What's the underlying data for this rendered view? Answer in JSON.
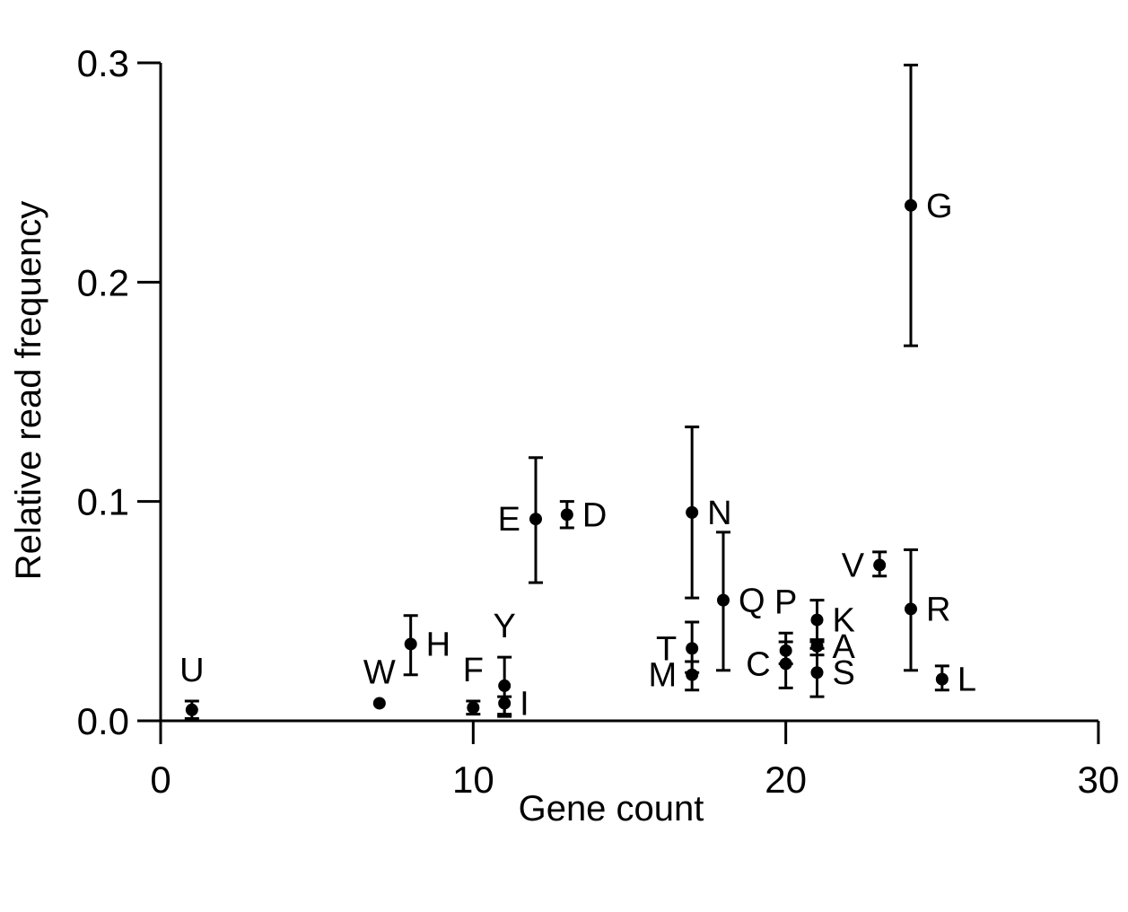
{
  "chart_data": {
    "type": "scatter",
    "title": "",
    "xlabel": "Gene count",
    "ylabel": "Relative read frequency",
    "xlim": [
      0,
      30
    ],
    "ylim": [
      0,
      0.3
    ],
    "xticks": [
      0,
      10,
      20,
      30
    ],
    "xtick_labels": [
      "0",
      "10",
      "20",
      "30"
    ],
    "yticks": [
      0,
      0.1,
      0.2,
      0.3
    ],
    "ytick_labels": [
      "0.0",
      "0.1",
      "0.2",
      "0.3"
    ],
    "grid": false,
    "legend": "none",
    "points": [
      {
        "label": "U",
        "x": 1,
        "y": 0.005,
        "ylow": 0.001,
        "yhigh": 0.009,
        "label_pos": "above"
      },
      {
        "label": "W",
        "x": 7,
        "y": 0.008,
        "ylow": 0.008,
        "yhigh": 0.008,
        "label_pos": "above"
      },
      {
        "label": "H",
        "x": 8,
        "y": 0.035,
        "ylow": 0.021,
        "yhigh": 0.048,
        "label_pos": "right"
      },
      {
        "label": "F",
        "x": 10,
        "y": 0.006,
        "ylow": 0.003,
        "yhigh": 0.009,
        "label_pos": "above"
      },
      {
        "label": "Y",
        "x": 11,
        "y": 0.016,
        "ylow": 0.003,
        "yhigh": 0.029,
        "label_pos": "above"
      },
      {
        "label": "I",
        "x": 11,
        "y": 0.008,
        "ylow": 0.002,
        "yhigh": 0.011,
        "label_pos": "right"
      },
      {
        "label": "E",
        "x": 12,
        "y": 0.092,
        "ylow": 0.063,
        "yhigh": 0.12,
        "label_pos": "left"
      },
      {
        "label": "D",
        "x": 13,
        "y": 0.094,
        "ylow": 0.088,
        "yhigh": 0.1,
        "label_pos": "right"
      },
      {
        "label": "N",
        "x": 17,
        "y": 0.095,
        "ylow": 0.056,
        "yhigh": 0.134,
        "label_pos": "right"
      },
      {
        "label": "T",
        "x": 17,
        "y": 0.033,
        "ylow": 0.022,
        "yhigh": 0.045,
        "label_pos": "left"
      },
      {
        "label": "M",
        "x": 17,
        "y": 0.021,
        "ylow": 0.014,
        "yhigh": 0.027,
        "label_pos": "left"
      },
      {
        "label": "Q",
        "x": 18,
        "y": 0.055,
        "ylow": 0.023,
        "yhigh": 0.086,
        "label_pos": "right"
      },
      {
        "label": "P",
        "x": 20,
        "y": 0.032,
        "ylow": 0.026,
        "yhigh": 0.04,
        "label_pos": "above"
      },
      {
        "label": "C",
        "x": 20,
        "y": 0.026,
        "ylow": 0.015,
        "yhigh": 0.036,
        "label_pos": "left"
      },
      {
        "label": "K",
        "x": 21,
        "y": 0.046,
        "ylow": 0.036,
        "yhigh": 0.055,
        "label_pos": "right"
      },
      {
        "label": "A",
        "x": 21,
        "y": 0.034,
        "ylow": 0.03,
        "yhigh": 0.037,
        "label_pos": "right"
      },
      {
        "label": "S",
        "x": 21,
        "y": 0.022,
        "ylow": 0.011,
        "yhigh": 0.033,
        "label_pos": "right"
      },
      {
        "label": "V",
        "x": 23,
        "y": 0.071,
        "ylow": 0.066,
        "yhigh": 0.077,
        "label_pos": "left"
      },
      {
        "label": "G",
        "x": 24,
        "y": 0.235,
        "ylow": 0.171,
        "yhigh": 0.299,
        "label_pos": "right"
      },
      {
        "label": "R",
        "x": 24,
        "y": 0.051,
        "ylow": 0.023,
        "yhigh": 0.078,
        "label_pos": "right"
      },
      {
        "label": "L",
        "x": 25,
        "y": 0.019,
        "ylow": 0.014,
        "yhigh": 0.025,
        "label_pos": "right"
      }
    ]
  }
}
